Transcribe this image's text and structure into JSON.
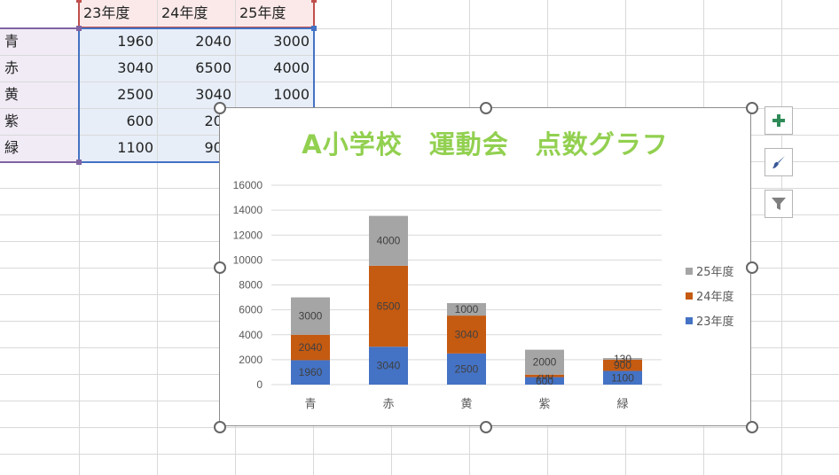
{
  "sheet": {
    "columns": [
      "",
      "23年度",
      "24年度",
      "25年度"
    ],
    "rows": [
      {
        "label": "青",
        "values": [
          "1960",
          "2040",
          "3000"
        ]
      },
      {
        "label": "赤",
        "values": [
          "3040",
          "6500",
          "4000"
        ]
      },
      {
        "label": "黄",
        "values": [
          "2500",
          "3040",
          "1000"
        ]
      },
      {
        "label": "紫",
        "values": [
          "600",
          "200",
          "2000"
        ]
      },
      {
        "label": "緑",
        "values": [
          "1100",
          "900",
          "130"
        ]
      }
    ],
    "visible_partial": {
      "purple_24": "20",
      "green_24": "90"
    }
  },
  "chart_buttons": [
    {
      "name": "chart-elements-button",
      "icon": "plus-icon"
    },
    {
      "name": "chart-styles-button",
      "icon": "brush-icon"
    },
    {
      "name": "chart-filters-button",
      "icon": "funnel-icon"
    }
  ],
  "chart_data": {
    "type": "bar",
    "stacked": true,
    "title": "A小学校　運動会　点数グラフ",
    "categories": [
      "青",
      "赤",
      "黄",
      "紫",
      "緑"
    ],
    "series": [
      {
        "name": "23年度",
        "color": "#4472c4",
        "values": [
          1960,
          3040,
          2500,
          600,
          1100
        ]
      },
      {
        "name": "24年度",
        "color": "#c55a11",
        "values": [
          2040,
          6500,
          3040,
          200,
          900
        ]
      },
      {
        "name": "25年度",
        "color": "#a5a5a5",
        "values": [
          3000,
          4000,
          1000,
          2000,
          130
        ]
      }
    ],
    "ylim": [
      0,
      16000
    ],
    "yticks": [
      "0",
      "2000",
      "4000",
      "6000",
      "8000",
      "10000",
      "12000",
      "14000",
      "16000"
    ],
    "grid": true,
    "legend": "right",
    "data_labels": true,
    "title_color": "#92d050"
  }
}
